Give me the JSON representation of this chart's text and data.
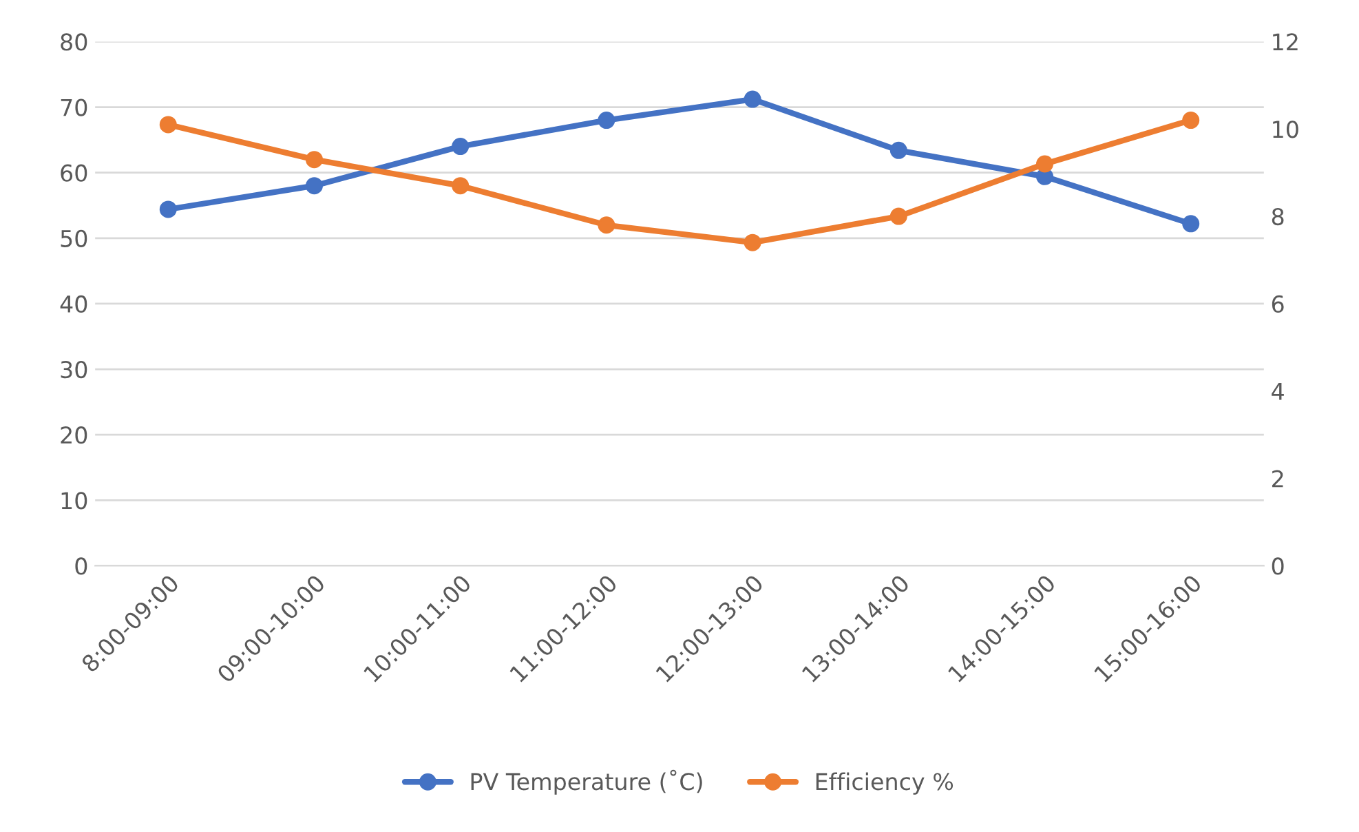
{
  "chart_data": {
    "type": "line",
    "categories": [
      "8:00-09:00",
      "09:00-10:00",
      "10:00-11:00",
      "11:00-12:00",
      "12:00-13:00",
      "13:00-14:00",
      "14:00-15:00",
      "15:00-16:00"
    ],
    "series": [
      {
        "name": "PV Temperature (˚C)",
        "color": "#4472c4",
        "values": [
          54.4,
          58.0,
          64.0,
          68.0,
          71.2,
          63.4,
          59.4,
          52.2
        ]
      },
      {
        "name": "Efficiency %",
        "color": "#ed7d31",
        "axis": "y2",
        "values": [
          10.1,
          9.3,
          8.7,
          7.8,
          7.4,
          8.0,
          9.2,
          10.2
        ]
      }
    ],
    "ylim": [
      0,
      80
    ],
    "yticks": [
      0,
      10,
      20,
      30,
      40,
      50,
      60,
      70,
      80
    ],
    "y2lim": [
      0,
      12
    ],
    "y2ticks": [
      0,
      2,
      4,
      6,
      8,
      10,
      12
    ],
    "grid": "y",
    "legend": "bottom",
    "marker": "circle",
    "line_style": "solid"
  }
}
